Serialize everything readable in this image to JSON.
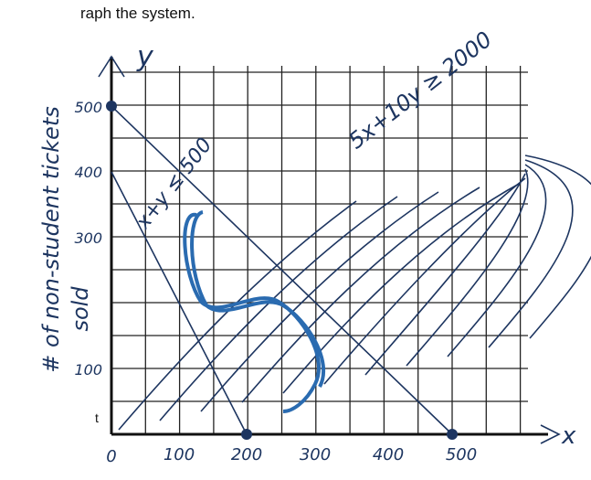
{
  "header": {
    "title": "raph the system."
  },
  "axes": {
    "x_label": "x",
    "y_label": "y",
    "y_title": [
      "# of non-student tickets",
      "sold"
    ],
    "x_ticks": [
      "0",
      "100",
      "200",
      "300",
      "400",
      "500"
    ],
    "y_ticks": [
      "500",
      "400",
      "300",
      "100"
    ]
  },
  "annotations": [
    "x+y ≤ 500",
    "5x+10y ≥ 2000"
  ],
  "margin_note": "t"
}
